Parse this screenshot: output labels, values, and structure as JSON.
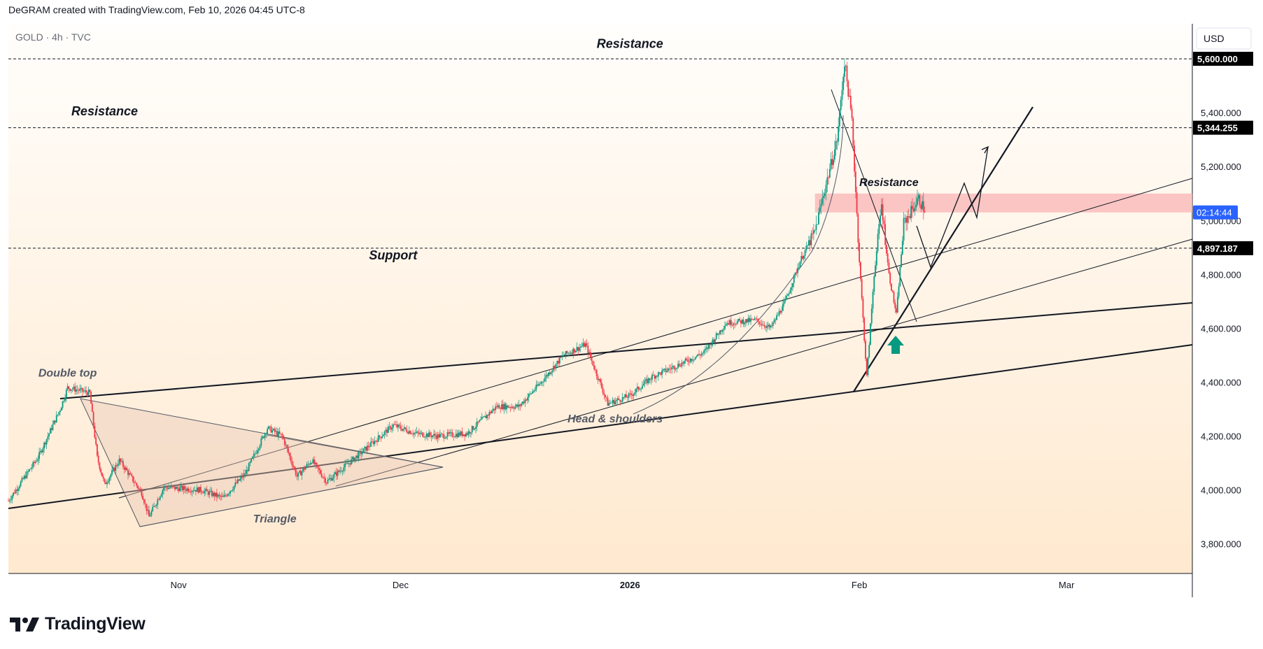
{
  "header": {
    "text": "DeGRAM created with TradingView.com, Feb 10, 2026 04:45 UTC-8"
  },
  "symbol": {
    "text": "GOLD · 4h · TVC"
  },
  "currency": "USD",
  "brand": {
    "name": "TradingView"
  },
  "colors": {
    "up": "#089981",
    "down": "#f23645",
    "zone": "#f8b4b4",
    "countdown": "#2962ff"
  },
  "chart_data": {
    "type": "candlestick",
    "title": "",
    "xlabel": "",
    "ylabel": "",
    "ylim": [
      3690,
      5730
    ],
    "y_ticks": [
      {
        "value": 3800,
        "label": "3,800.000"
      },
      {
        "value": 4000,
        "label": "4,000.000"
      },
      {
        "value": 4200,
        "label": "4,200.000"
      },
      {
        "value": 4400,
        "label": "4,400.000"
      },
      {
        "value": 4600,
        "label": "4,600.000"
      },
      {
        "value": 4800,
        "label": "4,800.000"
      },
      {
        "value": 5000,
        "label": "5,000.000"
      },
      {
        "value": 5200,
        "label": "5,200.000"
      },
      {
        "value": 5400,
        "label": "5,400.000"
      }
    ],
    "x_ticks": [
      {
        "date": "2025-11-01",
        "label": "Nov",
        "bold": false
      },
      {
        "date": "2025-12-01",
        "label": "Dec",
        "bold": false
      },
      {
        "date": "2026-01-01",
        "label": "2026",
        "bold": true
      },
      {
        "date": "2026-02-01",
        "label": "Feb",
        "bold": false
      },
      {
        "date": "2026-03-01",
        "label": "Mar",
        "bold": false
      }
    ],
    "x_range": [
      "2025-10-09",
      "2026-03-18"
    ],
    "price_path": [
      [
        "2025-10-09",
        3960
      ],
      [
        "2025-10-13",
        4120
      ],
      [
        "2025-10-16",
        4300
      ],
      [
        "2025-10-17",
        4380
      ],
      [
        "2025-10-20",
        4360
      ],
      [
        "2025-10-21",
        4120
      ],
      [
        "2025-10-22",
        4020
      ],
      [
        "2025-10-24",
        4110
      ],
      [
        "2025-10-27",
        3990
      ],
      [
        "2025-10-28",
        3900
      ],
      [
        "2025-10-30",
        4010
      ],
      [
        "2025-11-04",
        4000
      ],
      [
        "2025-11-07",
        3970
      ],
      [
        "2025-11-10",
        4060
      ],
      [
        "2025-11-13",
        4230
      ],
      [
        "2025-11-15",
        4200
      ],
      [
        "2025-11-17",
        4050
      ],
      [
        "2025-11-19",
        4110
      ],
      [
        "2025-11-21",
        4030
      ],
      [
        "2025-11-24",
        4100
      ],
      [
        "2025-11-27",
        4170
      ],
      [
        "2025-11-30",
        4240
      ],
      [
        "2025-12-03",
        4210
      ],
      [
        "2025-12-06",
        4200
      ],
      [
        "2025-12-10",
        4210
      ],
      [
        "2025-12-14",
        4310
      ],
      [
        "2025-12-17",
        4310
      ],
      [
        "2025-12-20",
        4400
      ],
      [
        "2025-12-23",
        4500
      ],
      [
        "2025-12-26",
        4540
      ],
      [
        "2025-12-29",
        4320
      ],
      [
        "2026-01-01",
        4350
      ],
      [
        "2026-01-04",
        4420
      ],
      [
        "2026-01-08",
        4470
      ],
      [
        "2026-01-11",
        4510
      ],
      [
        "2026-01-14",
        4620
      ],
      [
        "2026-01-18",
        4630
      ],
      [
        "2026-01-20",
        4600
      ],
      [
        "2026-01-22",
        4700
      ],
      [
        "2026-01-24",
        4850
      ],
      [
        "2026-01-26",
        4960
      ],
      [
        "2026-01-27",
        5080
      ],
      [
        "2026-01-29",
        5300
      ],
      [
        "2026-01-30",
        5590
      ],
      [
        "2026-01-31",
        5370
      ],
      [
        "2026-02-01",
        4850
      ],
      [
        "2026-02-02",
        4420
      ],
      [
        "2026-02-03",
        4800
      ],
      [
        "2026-02-04",
        5060
      ],
      [
        "2026-02-05",
        4800
      ],
      [
        "2026-02-06",
        4650
      ],
      [
        "2026-02-07",
        4990
      ],
      [
        "2026-02-09",
        5080
      ],
      [
        "2026-02-10",
        5030
      ]
    ],
    "levels": [
      {
        "value": 5600,
        "label": "5,600.000"
      },
      {
        "value": 5344.255,
        "label": "5,344.255"
      },
      {
        "value": 4897.187,
        "label": "4,897.187"
      }
    ],
    "countdown": {
      "value": 5030,
      "label": "02:14:44"
    },
    "resistance_zone": {
      "from": "2026-01-26",
      "low": 5030,
      "high": 5100
    },
    "annotations": [
      {
        "id": "resistance-top",
        "text": "Resistance",
        "date": "2026-01-01",
        "value": 5640
      },
      {
        "id": "resistance-left",
        "text": "Resistance",
        "date": "2025-10-22",
        "value": 5390
      },
      {
        "id": "resistance-zone-label",
        "text": "Resistance",
        "date": "2026-02-05",
        "value": 5128
      },
      {
        "id": "support",
        "text": "Support",
        "date": "2025-11-30",
        "value": 4855
      },
      {
        "id": "double-top",
        "text": "Double top",
        "date": "2025-10-17",
        "value": 4420
      },
      {
        "id": "head-shoulders",
        "text": "Head & shoulders",
        "date": "2025-12-30",
        "value": 4250
      },
      {
        "id": "triangle",
        "text": "Triangle",
        "date": "2025-11-14",
        "value": 3880
      }
    ]
  }
}
